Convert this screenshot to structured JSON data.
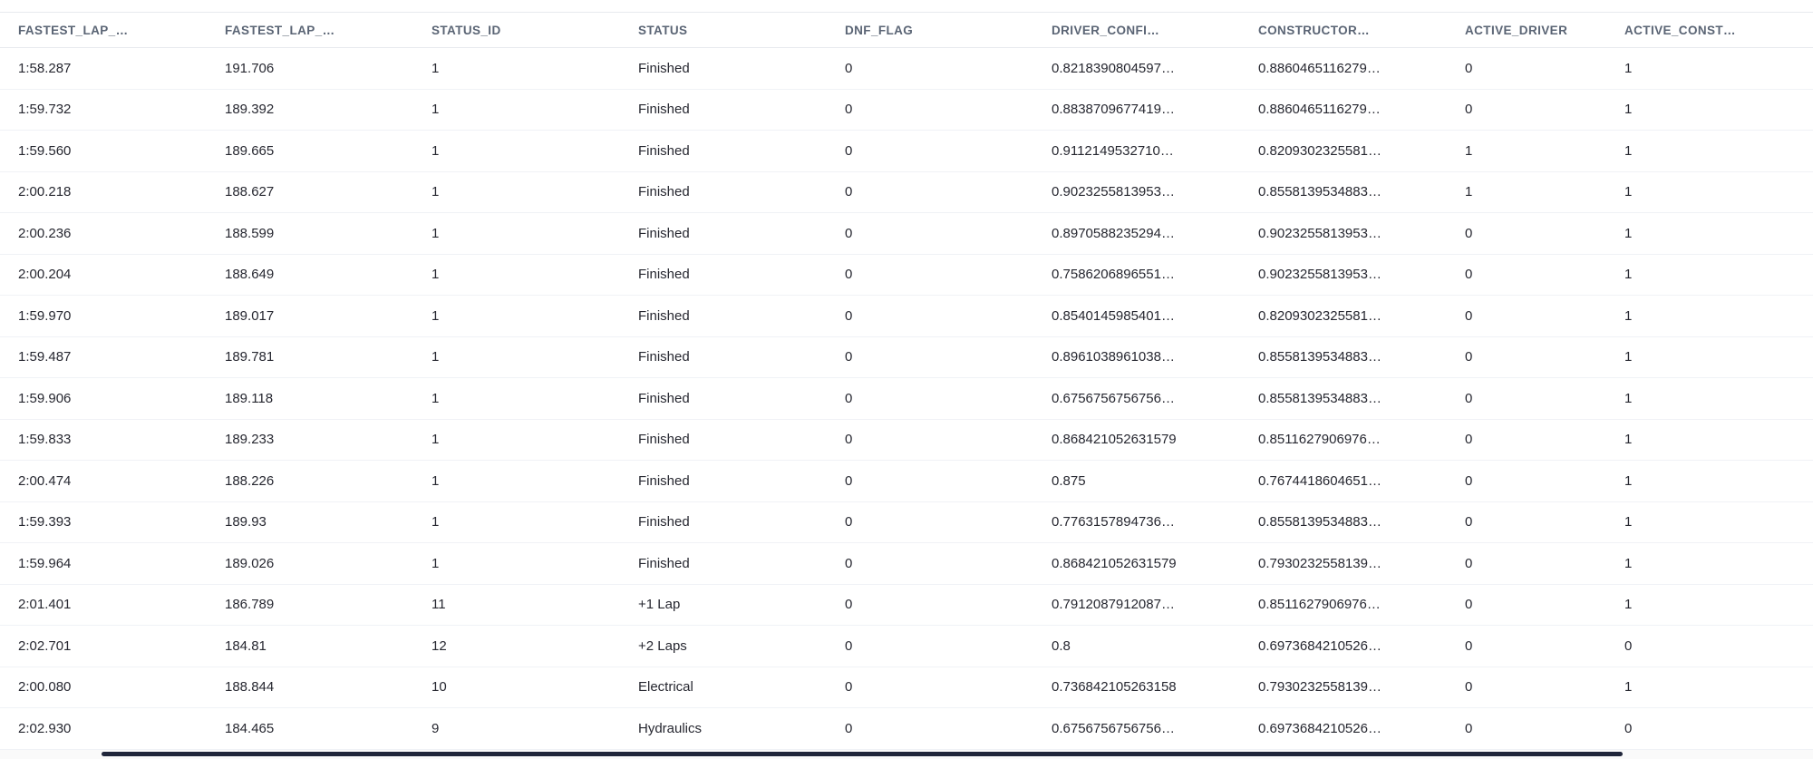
{
  "colors": {
    "background": "#ffffff",
    "header_text": "#5a6474",
    "cell_text": "#262730",
    "header_border": "#e7eaee",
    "row_border": "#f0f2f6",
    "scrollbar_thumb": "#20263a"
  },
  "table": {
    "columns": [
      "FASTEST_LAP_…",
      "FASTEST_LAP_…",
      "STATUS_ID",
      "STATUS",
      "DNF_FLAG",
      "DRIVER_CONFI…",
      "CONSTRUCTOR…",
      "ACTIVE_DRIVER",
      "ACTIVE_CONST…"
    ],
    "rows": [
      [
        "1:58.287",
        "191.706",
        "1",
        "Finished",
        "0",
        "0.8218390804597…",
        "0.8860465116279…",
        "0",
        "1"
      ],
      [
        "1:59.732",
        "189.392",
        "1",
        "Finished",
        "0",
        "0.8838709677419…",
        "0.8860465116279…",
        "0",
        "1"
      ],
      [
        "1:59.560",
        "189.665",
        "1",
        "Finished",
        "0",
        "0.9112149532710…",
        "0.8209302325581…",
        "1",
        "1"
      ],
      [
        "2:00.218",
        "188.627",
        "1",
        "Finished",
        "0",
        "0.9023255813953…",
        "0.8558139534883…",
        "1",
        "1"
      ],
      [
        "2:00.236",
        "188.599",
        "1",
        "Finished",
        "0",
        "0.8970588235294…",
        "0.9023255813953…",
        "0",
        "1"
      ],
      [
        "2:00.204",
        "188.649",
        "1",
        "Finished",
        "0",
        "0.7586206896551…",
        "0.9023255813953…",
        "0",
        "1"
      ],
      [
        "1:59.970",
        "189.017",
        "1",
        "Finished",
        "0",
        "0.8540145985401…",
        "0.8209302325581…",
        "0",
        "1"
      ],
      [
        "1:59.487",
        "189.781",
        "1",
        "Finished",
        "0",
        "0.8961038961038…",
        "0.8558139534883…",
        "0",
        "1"
      ],
      [
        "1:59.906",
        "189.118",
        "1",
        "Finished",
        "0",
        "0.6756756756756…",
        "0.8558139534883…",
        "0",
        "1"
      ],
      [
        "1:59.833",
        "189.233",
        "1",
        "Finished",
        "0",
        "0.868421052631579",
        "0.8511627906976…",
        "0",
        "1"
      ],
      [
        "2:00.474",
        "188.226",
        "1",
        "Finished",
        "0",
        "0.875",
        "0.7674418604651…",
        "0",
        "1"
      ],
      [
        "1:59.393",
        "189.93",
        "1",
        "Finished",
        "0",
        "0.7763157894736…",
        "0.8558139534883…",
        "0",
        "1"
      ],
      [
        "1:59.964",
        "189.026",
        "1",
        "Finished",
        "0",
        "0.868421052631579",
        "0.7930232558139…",
        "0",
        "1"
      ],
      [
        "2:01.401",
        "186.789",
        "11",
        "+1 Lap",
        "0",
        "0.7912087912087…",
        "0.8511627906976…",
        "0",
        "1"
      ],
      [
        "2:02.701",
        "184.81",
        "12",
        "+2 Laps",
        "0",
        "0.8",
        "0.6973684210526…",
        "0",
        "0"
      ],
      [
        "2:00.080",
        "188.844",
        "10",
        "Electrical",
        "0",
        "0.736842105263158",
        "0.7930232558139…",
        "0",
        "1"
      ],
      [
        "2:02.930",
        "184.465",
        "9",
        "Hydraulics",
        "0",
        "0.6756756756756…",
        "0.6973684210526…",
        "0",
        "0"
      ]
    ]
  }
}
